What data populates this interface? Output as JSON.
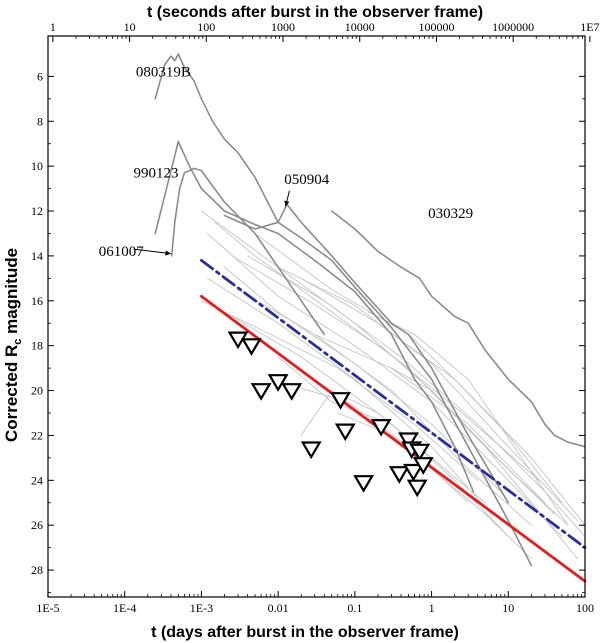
{
  "chart_data": {
    "type": "line",
    "top_axis": {
      "label": "t (seconds after burst in the observer frame)",
      "ticks": [
        {
          "value": 1,
          "label": "1"
        },
        {
          "value": 10,
          "label": "10"
        },
        {
          "value": 100,
          "label": "100"
        },
        {
          "value": 1000,
          "label": "1000"
        },
        {
          "value": 10000,
          "label": "10000"
        },
        {
          "value": 100000,
          "label": "100000"
        },
        {
          "value": 1000000,
          "label": "1000000"
        },
        {
          "value": 10000000,
          "label": "1E7"
        }
      ]
    },
    "x_axis": {
      "label": "t (days after burst in the observer frame)",
      "scale": "log",
      "range": [
        1e-05,
        100
      ],
      "ticks": [
        {
          "value": 1e-05,
          "label": "1E-5"
        },
        {
          "value": 0.0001,
          "label": "1E-4"
        },
        {
          "value": 0.001,
          "label": "1E-3"
        },
        {
          "value": 0.01,
          "label": "0.01"
        },
        {
          "value": 0.1,
          "label": "0.1"
        },
        {
          "value": 1,
          "label": "1"
        },
        {
          "value": 10,
          "label": "10"
        },
        {
          "value": 100,
          "label": "100"
        }
      ]
    },
    "y_axis": {
      "label_main": "Corrected R",
      "label_sub": "c",
      "label_rest": " magnitude",
      "range": [
        4.2,
        29.2
      ],
      "inverted": true,
      "ticks": [
        6,
        8,
        10,
        12,
        14,
        16,
        18,
        20,
        22,
        24,
        26,
        28
      ]
    },
    "annotations": [
      {
        "text": "080319B",
        "x": 0.00014,
        "y": 6.0
      },
      {
        "text": "990123",
        "x": 0.00013,
        "y": 10.5
      },
      {
        "text": "050904",
        "x": 0.012,
        "y": 10.8
      },
      {
        "text": "030329",
        "x": 0.9,
        "y": 12.3
      },
      {
        "text": "061007",
        "x": 4.6e-05,
        "y": 14.0
      }
    ],
    "series": [
      {
        "name": "080319B",
        "style": "highlight",
        "points": [
          [
            0.00025,
            7.0
          ],
          [
            0.00033,
            5.5
          ],
          [
            0.0004,
            5.1
          ],
          [
            0.00045,
            5.3
          ],
          [
            0.0005,
            5.0
          ],
          [
            0.0006,
            5.6
          ],
          [
            0.0008,
            6.2
          ],
          [
            0.001,
            7.0
          ],
          [
            0.0014,
            8.0
          ],
          [
            0.002,
            8.8
          ],
          [
            0.003,
            9.4
          ],
          [
            0.005,
            10.5
          ],
          [
            0.01,
            12.5
          ],
          [
            0.02,
            13.2
          ],
          [
            0.05,
            14.2
          ],
          [
            0.1,
            15.4
          ],
          [
            0.3,
            17.2
          ],
          [
            1,
            19.5
          ],
          [
            3,
            22.5
          ],
          [
            10,
            25.8
          ],
          [
            20,
            27.8
          ]
        ]
      },
      {
        "name": "990123",
        "style": "highlight",
        "points": [
          [
            0.00025,
            13.0
          ],
          [
            0.00035,
            11.0
          ],
          [
            0.0005,
            8.9
          ],
          [
            0.0007,
            10.0
          ],
          [
            0.001,
            11.0
          ],
          [
            0.002,
            12.0
          ],
          [
            0.005,
            12.6
          ],
          [
            0.01,
            13.0
          ],
          [
            0.03,
            14.2
          ],
          [
            0.1,
            15.6
          ],
          [
            0.3,
            17.5
          ],
          [
            0.6,
            19.5
          ],
          [
            1,
            20.5
          ],
          [
            2,
            22.5
          ],
          [
            3.5,
            24.5
          ]
        ]
      },
      {
        "name": "061007",
        "style": "highlight",
        "points": [
          [
            0.00041,
            14.0
          ],
          [
            0.00045,
            12.5
          ],
          [
            0.00052,
            11.0
          ],
          [
            0.0006,
            10.3
          ],
          [
            0.0008,
            10.1
          ],
          [
            0.001,
            10.2
          ],
          [
            0.002,
            11.6
          ],
          [
            0.005,
            13.0
          ],
          [
            0.01,
            14.5
          ],
          [
            0.02,
            16.0
          ],
          [
            0.04,
            17.5
          ]
        ]
      },
      {
        "name": "050904",
        "style": "highlight",
        "points": [
          [
            0.002,
            12.2
          ],
          [
            0.005,
            12.8
          ],
          [
            0.01,
            12.5
          ],
          [
            0.013,
            11.7
          ],
          [
            0.02,
            12.5
          ],
          [
            0.05,
            14.0
          ],
          [
            0.1,
            15.2
          ],
          [
            0.3,
            17.0
          ],
          [
            0.5,
            17.5
          ],
          [
            1,
            19.0
          ],
          [
            3,
            22.0
          ],
          [
            10,
            25.0
          ]
        ]
      },
      {
        "name": "030329",
        "style": "highlight",
        "points": [
          [
            0.05,
            12.0
          ],
          [
            0.1,
            12.8
          ],
          [
            0.2,
            13.8
          ],
          [
            0.4,
            14.5
          ],
          [
            0.7,
            15.0
          ],
          [
            1,
            15.8
          ],
          [
            2,
            16.7
          ],
          [
            3,
            17.0
          ],
          [
            5,
            18.2
          ],
          [
            10,
            19.5
          ],
          [
            20,
            20.5
          ],
          [
            30,
            21.5
          ],
          [
            40,
            22.0
          ],
          [
            60,
            22.3
          ],
          [
            100,
            22.5
          ]
        ]
      },
      {
        "name": "afterglow-1",
        "style": "faint",
        "points": [
          [
            0.001,
            12.0
          ],
          [
            0.01,
            14.5
          ],
          [
            0.1,
            17.0
          ],
          [
            1,
            20.0
          ],
          [
            10,
            23.5
          ],
          [
            60,
            26.0
          ]
        ]
      },
      {
        "name": "afterglow-2",
        "style": "faint",
        "points": [
          [
            0.0012,
            13.0
          ],
          [
            0.01,
            15.8
          ],
          [
            0.1,
            18.0
          ],
          [
            1,
            20.5
          ],
          [
            10,
            24.0
          ],
          [
            50,
            26.5
          ]
        ]
      },
      {
        "name": "afterglow-3",
        "style": "faint",
        "points": [
          [
            0.002,
            14.5
          ],
          [
            0.01,
            16.5
          ],
          [
            0.1,
            18.8
          ],
          [
            1,
            21.5
          ],
          [
            8,
            24.5
          ]
        ]
      },
      {
        "name": "afterglow-4",
        "style": "faint",
        "points": [
          [
            0.0015,
            12.5
          ],
          [
            0.005,
            14.0
          ],
          [
            0.05,
            16.5
          ],
          [
            0.5,
            19.0
          ],
          [
            5,
            22.5
          ],
          [
            40,
            25.5
          ]
        ]
      },
      {
        "name": "afterglow-5",
        "style": "faint",
        "points": [
          [
            0.004,
            14.0
          ],
          [
            0.04,
            16.0
          ],
          [
            0.4,
            18.5
          ],
          [
            4,
            21.5
          ],
          [
            30,
            24.5
          ],
          [
            100,
            26.5
          ]
        ]
      },
      {
        "name": "afterglow-6",
        "style": "faint",
        "points": [
          [
            0.003,
            15.5
          ],
          [
            0.03,
            17.5
          ],
          [
            0.3,
            20.0
          ],
          [
            3,
            23.5
          ],
          [
            20,
            26.0
          ]
        ]
      },
      {
        "name": "afterglow-7",
        "style": "faint",
        "points": [
          [
            0.0012,
            15.0
          ],
          [
            0.01,
            17.0
          ],
          [
            0.1,
            19.5
          ],
          [
            1,
            22.5
          ],
          [
            6,
            25.5
          ]
        ]
      },
      {
        "name": "afterglow-8",
        "style": "faint",
        "points": [
          [
            0.01,
            18.5
          ],
          [
            0.05,
            20.5
          ],
          [
            0.3,
            21.5
          ],
          [
            2,
            24.0
          ],
          [
            10,
            26.5
          ]
        ]
      },
      {
        "name": "afterglow-9",
        "style": "faint",
        "points": [
          [
            0.02,
            22.0
          ],
          [
            0.05,
            20.0
          ],
          [
            0.2,
            21.0
          ],
          [
            1,
            23.0
          ],
          [
            5,
            25.0
          ]
        ]
      },
      {
        "name": "afterglow-10",
        "style": "faint",
        "points": [
          [
            0.06,
            21.0
          ],
          [
            0.3,
            22.0
          ],
          [
            1,
            23.5
          ],
          [
            5,
            25.5
          ],
          [
            20,
            27.5
          ]
        ]
      },
      {
        "name": "afterglow-11",
        "style": "faint",
        "points": [
          [
            0.005,
            13.0
          ],
          [
            0.05,
            15.5
          ],
          [
            0.5,
            17.5
          ],
          [
            2,
            19.5
          ],
          [
            10,
            22.0
          ],
          [
            50,
            25.0
          ]
        ]
      },
      {
        "name": "afterglow-12",
        "style": "faint",
        "points": [
          [
            0.01,
            14.5
          ],
          [
            0.1,
            16.2
          ],
          [
            1,
            18.8
          ],
          [
            10,
            22.5
          ],
          [
            80,
            25.8
          ]
        ]
      },
      {
        "name": "afterglow-13",
        "style": "faint",
        "points": [
          [
            0.002,
            16.5
          ],
          [
            0.02,
            18.5
          ],
          [
            0.2,
            21.0
          ],
          [
            1.5,
            23.5
          ]
        ]
      },
      {
        "name": "afterglow-14",
        "style": "faint",
        "points": [
          [
            0.02,
            15.0
          ],
          [
            0.2,
            17.0
          ],
          [
            2,
            19.5
          ],
          [
            20,
            23.0
          ],
          [
            100,
            26.0
          ]
        ]
      },
      {
        "name": "afterglow-15",
        "style": "faint",
        "points": [
          [
            0.03,
            17.5
          ],
          [
            0.3,
            19.0
          ],
          [
            3,
            21.5
          ],
          [
            30,
            25.0
          ]
        ]
      },
      {
        "name": "afterglow-16",
        "style": "faint",
        "points": [
          [
            0.001,
            16.0
          ],
          [
            0.008,
            17.5
          ],
          [
            0.06,
            19.0
          ],
          [
            0.6,
            21.5
          ],
          [
            4,
            24.0
          ]
        ]
      },
      {
        "name": "afterglow-17",
        "style": "faint",
        "points": [
          [
            0.0025,
            14.0
          ],
          [
            0.025,
            16.0
          ],
          [
            0.25,
            18.2
          ],
          [
            2.5,
            21.0
          ],
          [
            25,
            24.0
          ]
        ]
      },
      {
        "name": "afterglow-18",
        "style": "faint",
        "points": [
          [
            0.15,
            16.5
          ],
          [
            0.6,
            17.5
          ],
          [
            3,
            19.5
          ],
          [
            15,
            23.0
          ],
          [
            60,
            26.0
          ]
        ]
      },
      {
        "name": "afterglow-19",
        "style": "faint",
        "points": [
          [
            0.008,
            19.5
          ],
          [
            0.08,
            20.5
          ],
          [
            0.5,
            22.5
          ],
          [
            3,
            25.0
          ]
        ]
      },
      {
        "name": "afterglow-20",
        "style": "faint",
        "points": [
          [
            0.3,
            19.0
          ],
          [
            1,
            20.0
          ],
          [
            5,
            22.5
          ],
          [
            20,
            25.0
          ],
          [
            80,
            27.5
          ]
        ]
      },
      {
        "name": "red-trend",
        "style": "trend-red",
        "points": [
          [
            0.001,
            15.8
          ],
          [
            100,
            28.5
          ]
        ]
      },
      {
        "name": "blue-trend",
        "style": "trend-blue",
        "points": [
          [
            0.001,
            14.2
          ],
          [
            100,
            27.0
          ]
        ]
      },
      {
        "name": "upper-limits",
        "style": "marker",
        "points": [
          [
            0.003,
            17.7
          ],
          [
            0.0045,
            18.0
          ],
          [
            0.006,
            20.0
          ],
          [
            0.01,
            19.6
          ],
          [
            0.015,
            20.0
          ],
          [
            0.027,
            22.6
          ],
          [
            0.065,
            20.4
          ],
          [
            0.075,
            21.8
          ],
          [
            0.22,
            21.6
          ],
          [
            0.13,
            24.1
          ],
          [
            0.5,
            22.2
          ],
          [
            0.55,
            22.6
          ],
          [
            0.7,
            22.7
          ],
          [
            0.38,
            23.7
          ],
          [
            0.58,
            23.6
          ],
          [
            0.78,
            23.3
          ],
          [
            0.65,
            24.3
          ]
        ]
      }
    ],
    "colors": {
      "highlight": "#8c8c8c",
      "faint": "#c4c4c4",
      "trend_red": "#e02020",
      "trend_blue": "#2b2f9a",
      "marker_stroke": "#000000",
      "axis": "#000000"
    }
  }
}
